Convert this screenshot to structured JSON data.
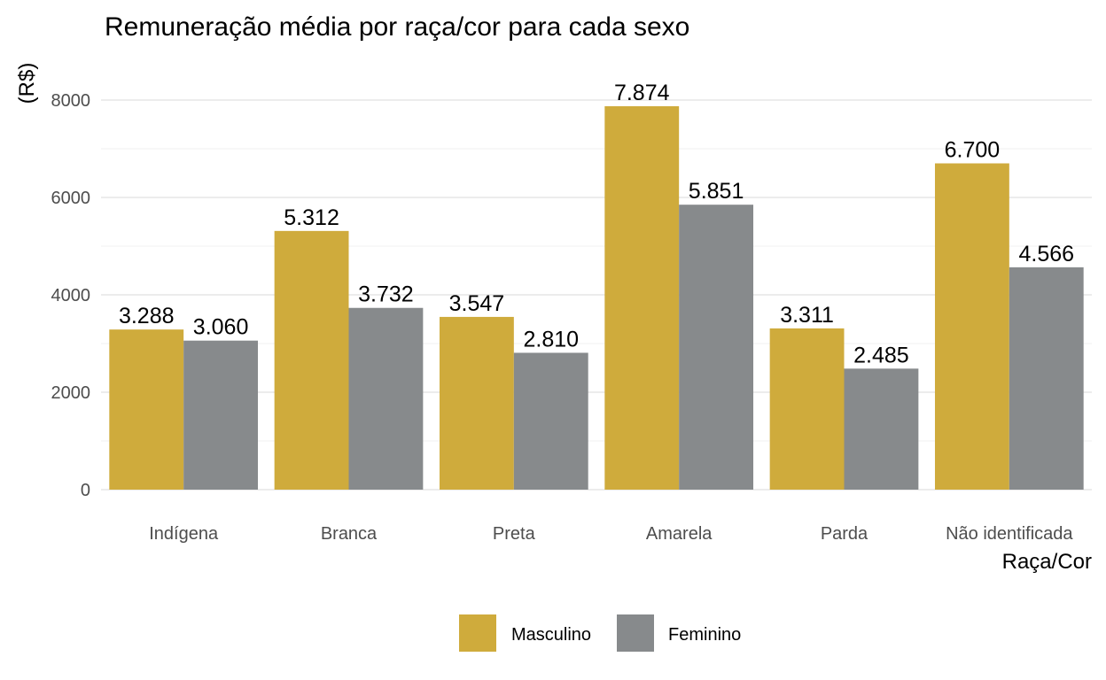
{
  "chart_data": {
    "type": "bar",
    "title": "Remuneração média por raça/cor para cada sexo",
    "xlabel": "Raça/Cor",
    "ylabel": "(R$)",
    "categories": [
      "Indígena",
      "Branca",
      "Preta",
      "Amarela",
      "Parda",
      "Não identificada"
    ],
    "series": [
      {
        "name": "Masculino",
        "color": "#cfab3c",
        "values": [
          3288,
          5312,
          3547,
          7874,
          3311,
          6700
        ],
        "labels": [
          "3.288",
          "5.312",
          "3.547",
          "7.874",
          "3.311",
          "6.700"
        ]
      },
      {
        "name": "Feminino",
        "color": "#878a8c",
        "values": [
          3060,
          3732,
          2810,
          5851,
          2485,
          4566
        ],
        "labels": [
          "3.060",
          "3.732",
          "2.810",
          "5.851",
          "2.485",
          "4.566"
        ]
      }
    ],
    "y_ticks": [
      0,
      2000,
      4000,
      6000,
      8000
    ],
    "y_tick_labels": [
      "0",
      "2000",
      "4000",
      "6000",
      "8000"
    ],
    "ylim": [
      0,
      8000
    ],
    "grid": true,
    "legend_position": "bottom"
  }
}
